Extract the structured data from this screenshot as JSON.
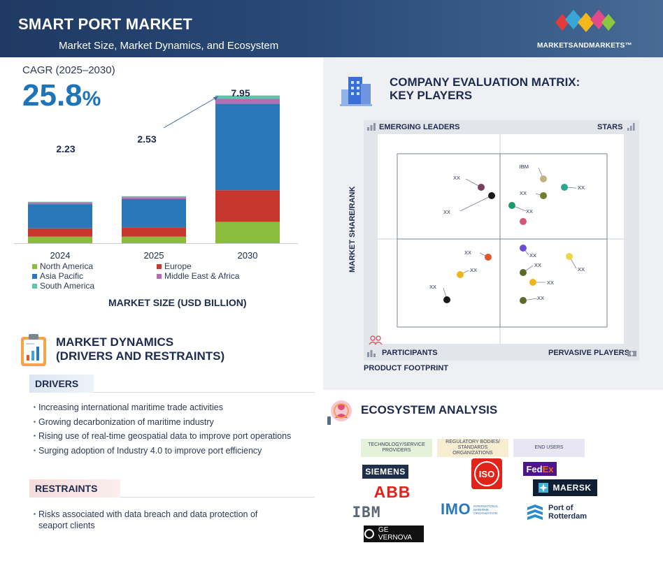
{
  "header": {
    "title": "SMART PORT MARKET",
    "subtitle": "Market Size, Market Dynamics, and Ecosystem",
    "brand": "MARKETSANDMARKETS™"
  },
  "market_size": {
    "cagr_label": "CAGR (2025–2030)",
    "cagr_value": "25.8",
    "cagr_unit": "%",
    "caption": "MARKET SIZE (USD BILLION)",
    "legend": [
      {
        "name": "North America",
        "color": "#8cbc3c"
      },
      {
        "name": "Europe",
        "color": "#c8372d"
      },
      {
        "name": "Asia Pacific",
        "color": "#2a78b8"
      },
      {
        "name": "Middle East & Africa",
        "color": "#b06fb2"
      },
      {
        "name": "South America",
        "color": "#5cc7a8"
      }
    ]
  },
  "chart_data": {
    "type": "bar",
    "stacked": true,
    "categories": [
      "2024",
      "2025",
      "2030"
    ],
    "totals": [
      2.23,
      2.53,
      7.95
    ],
    "total_labels": [
      "2.23",
      "2.53",
      "7.95"
    ],
    "series": [
      {
        "name": "North America",
        "color": "#8cbc3c",
        "values": [
          0.35,
          0.35,
          1.15
        ]
      },
      {
        "name": "Europe",
        "color": "#c8372d",
        "values": [
          0.45,
          0.5,
          1.7
        ]
      },
      {
        "name": "Asia Pacific",
        "color": "#2a78b8",
        "values": [
          1.3,
          1.52,
          4.65
        ]
      },
      {
        "name": "Middle East & Africa",
        "color": "#b06fb2",
        "values": [
          0.08,
          0.1,
          0.28
        ]
      },
      {
        "name": "South America",
        "color": "#5cc7a8",
        "values": [
          0.05,
          0.06,
          0.17
        ]
      }
    ],
    "ylim": [
      0,
      8.2
    ],
    "grid": false
  },
  "market_dynamics": {
    "title_line1": "MARKET DYNAMICS",
    "title_line2": "(DRIVERS AND RESTRAINTS)",
    "drivers_label": "DRIVERS",
    "drivers": [
      "Increasing international maritime trade activities",
      "Growing decarbonization of maritime industry",
      "Rising use of real-time geospatial data to improve port operations",
      "Surging adoption of Industry 4.0 to improve port efficiency"
    ],
    "restraints_label": "RESTRAINTS",
    "restraints": [
      "Risks associated with data breach and data protection of seaport clients"
    ]
  },
  "company_matrix": {
    "title_line1": "COMPANY EVALUATION MATRIX:",
    "title_line2": "KEY PLAYERS",
    "quadrants": {
      "top_left": "EMERGING LEADERS",
      "top_right": "STARS",
      "bottom_left": "PARTICIPANTS",
      "bottom_right": "PERVASIVE PLAYERS"
    },
    "y_axis": "MARKET SHARE/RANK",
    "x_axis": "PRODUCT FOOTPRINT",
    "players": [
      {
        "label": "XX",
        "color": "#7b3f5c"
      },
      {
        "label": "XX",
        "color": "#1a1a1a"
      },
      {
        "label": "IBM",
        "color": "#c2b285"
      },
      {
        "label": "XX",
        "color": "#6f7f2f"
      },
      {
        "label": "XX",
        "color": "#2aa98f"
      },
      {
        "label": "XX",
        "color": "#1a9a6a"
      },
      {
        "label": "",
        "color": "#d4557a"
      },
      {
        "label": "XX",
        "color": "#e2562c"
      },
      {
        "label": "XX",
        "color": "#6a4fd6"
      },
      {
        "label": "XX",
        "color": "#f0d54a"
      },
      {
        "label": "XX",
        "color": "#f2b41c"
      },
      {
        "label": "XX",
        "color": "#5c6b2a"
      },
      {
        "label": "XX",
        "color": "#f2b41c"
      },
      {
        "label": "XX",
        "color": "#1a1a1a"
      },
      {
        "label": "XX",
        "color": "#5c6b2a"
      }
    ]
  },
  "ecosystem": {
    "title": "ECOSYSTEM ANALYSIS",
    "categories": {
      "tech": "TECHNOLOGY/SERVICE PROVIDERS",
      "regulatory": "REGULATORY BODIES/ STANDARDS ORGANIZATIONS",
      "end_users": "END USERS"
    },
    "logos": {
      "siemens": "SIEMENS",
      "abb": "ABB",
      "ibm": "IBM",
      "ge": "GE VERNOVA",
      "iso": "ISO",
      "imo": "IMO",
      "imo_sub": "INTERNATIONAL MARITIME ORGANIZATION",
      "fedex_fed": "Fed",
      "fedex_ex": "Ex",
      "maersk": "MAERSK",
      "rotterdam_1": "Port of",
      "rotterdam_2": "Rotterdam"
    }
  }
}
